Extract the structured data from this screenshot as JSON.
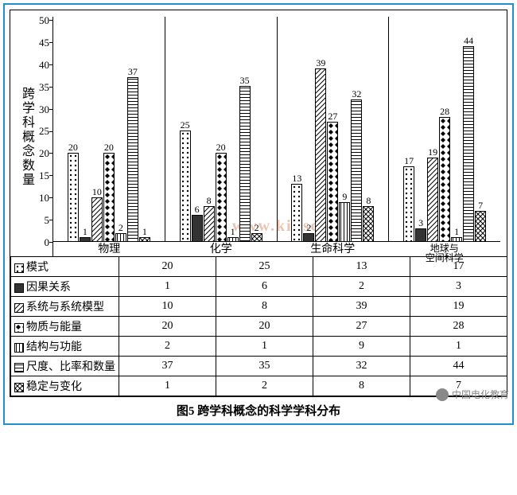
{
  "chart": {
    "type": "grouped-bar-with-table",
    "ylabel": "跨学科概念数量",
    "ylim": [
      0,
      50
    ],
    "ytick_step": 5,
    "yticks": [
      50,
      45,
      40,
      35,
      30,
      25,
      20,
      15,
      10,
      5,
      0
    ],
    "categories": [
      "物理",
      "化学",
      "生命科学",
      "地球与\n空间科学"
    ],
    "series": [
      {
        "name": "模式",
        "pattern": "p-dots"
      },
      {
        "name": "因果关系",
        "pattern": "p-solid"
      },
      {
        "name": "系统与系统模型",
        "pattern": "p-diag"
      },
      {
        "name": "物质与能量",
        "pattern": "p-diamond"
      },
      {
        "name": "结构与功能",
        "pattern": "p-vert"
      },
      {
        "name": "尺度、比率和数量",
        "pattern": "p-horz"
      },
      {
        "name": "稳定与变化",
        "pattern": "p-cross"
      }
    ],
    "values": [
      [
        20,
        1,
        10,
        20,
        2,
        37,
        1
      ],
      [
        25,
        6,
        8,
        20,
        1,
        35,
        2
      ],
      [
        13,
        2,
        39,
        27,
        9,
        32,
        8
      ],
      [
        17,
        3,
        19,
        28,
        1,
        44,
        7
      ]
    ],
    "bar_border": "#000000",
    "axis_color": "#000000",
    "background_color": "#ffffff",
    "label_fontsize": 12,
    "axis_fontsize": 13,
    "caption_fontsize": 15
  },
  "caption": "图5  跨学科概念的科学学科分布",
  "watermark": "www.kidscode.cn",
  "footer": "中国电化教育",
  "frame_border_color": "#2090d0"
}
